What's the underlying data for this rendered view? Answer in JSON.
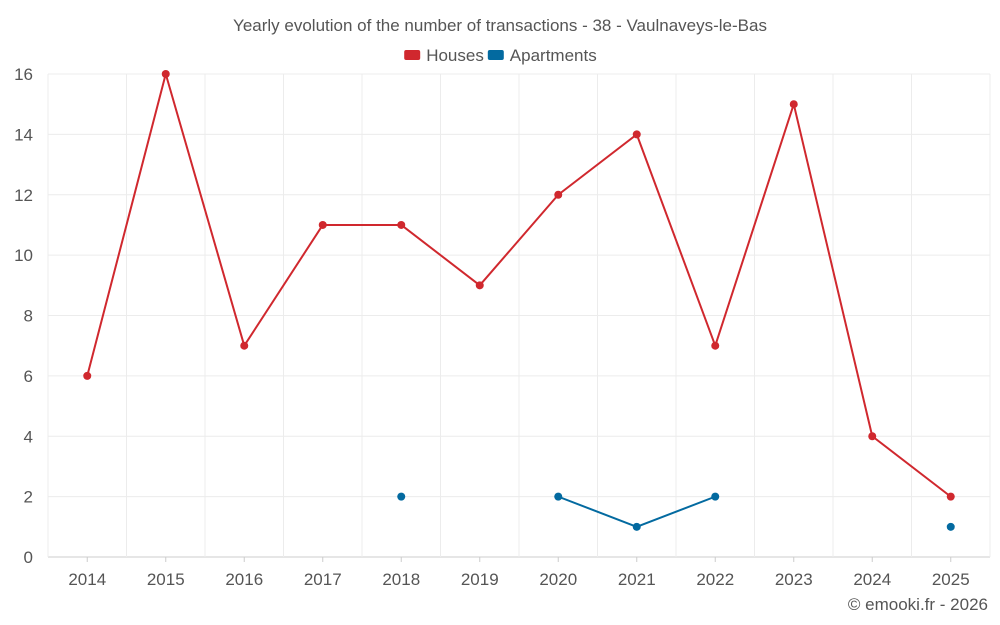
{
  "chart_data": {
    "type": "line",
    "title": "Yearly evolution of the number of transactions - 38 - Vaulnaveys-le-Bas",
    "categories": [
      "2014",
      "2015",
      "2016",
      "2017",
      "2018",
      "2019",
      "2020",
      "2021",
      "2022",
      "2023",
      "2024",
      "2025"
    ],
    "series": [
      {
        "name": "Houses",
        "color": "#d0282e",
        "values": [
          6,
          16,
          7,
          11,
          11,
          9,
          12,
          14,
          7,
          15,
          4,
          2
        ]
      },
      {
        "name": "Apartments",
        "color": "#036aa0",
        "values": [
          null,
          null,
          null,
          null,
          2,
          null,
          2,
          1,
          2,
          null,
          null,
          1
        ]
      }
    ],
    "yticks": [
      0,
      2,
      4,
      6,
      8,
      10,
      12,
      14,
      16
    ],
    "ylim": [
      0,
      16
    ],
    "grid": true,
    "legend_position": "top-center"
  },
  "credit": "© emooki.fr - 2026"
}
